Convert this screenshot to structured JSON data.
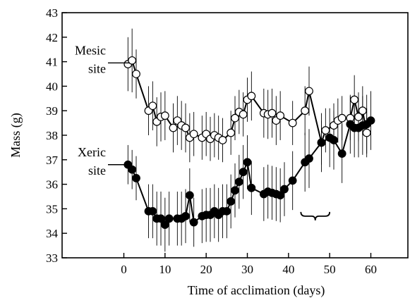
{
  "chart_data": {
    "type": "scatter",
    "xlabel": "Time of acclimation (days)",
    "ylabel": "Mass (g)",
    "xlim": [
      -15,
      69
    ],
    "ylim": [
      33,
      43
    ],
    "xticks": [
      0,
      10,
      20,
      30,
      40,
      50,
      60
    ],
    "yticks": [
      33,
      34,
      35,
      36,
      37,
      38,
      39,
      40,
      41,
      42,
      43
    ],
    "grid": false,
    "legend": "left, inline labels",
    "annotations": [
      {
        "type": "bracket",
        "x_range": [
          43,
          50
        ],
        "y": 34.7
      }
    ],
    "series": [
      {
        "name": "Mesic site",
        "label_lines": [
          "Mesic",
          "site"
        ],
        "marker": "open-circle",
        "color": "#000000",
        "label_y": 40.95,
        "x": [
          1,
          2,
          3,
          6,
          7,
          8,
          9,
          10,
          12,
          13,
          14,
          15,
          16,
          17,
          19,
          20,
          21,
          22,
          23,
          24,
          26,
          27,
          28,
          29,
          30,
          31,
          34,
          35,
          36,
          37,
          38,
          41,
          44,
          45,
          48,
          49,
          51,
          52,
          53,
          55,
          56,
          57,
          58,
          59
        ],
        "y": [
          40.9,
          41.05,
          40.5,
          39.0,
          39.2,
          38.55,
          38.75,
          38.8,
          38.3,
          38.6,
          38.4,
          38.3,
          37.9,
          38.05,
          37.9,
          38.05,
          37.85,
          38.0,
          37.9,
          37.8,
          38.1,
          38.7,
          38.95,
          38.85,
          39.45,
          39.6,
          38.9,
          38.85,
          38.9,
          38.6,
          38.8,
          38.5,
          39.0,
          39.8,
          37.7,
          38.2,
          38.4,
          38.6,
          38.7,
          38.7,
          39.45,
          38.75,
          39.0,
          38.1
        ],
        "err": [
          1.1,
          1.3,
          1.0,
          1.0,
          1.0,
          1.0,
          1.0,
          1.0,
          1.0,
          1.0,
          1.0,
          1.0,
          1.0,
          0.9,
          0.9,
          0.9,
          0.9,
          0.9,
          0.9,
          0.9,
          0.9,
          0.9,
          0.9,
          0.9,
          0.9,
          1.0,
          1.0,
          1.0,
          1.0,
          1.0,
          1.0,
          0.9,
          1.0,
          1.0,
          0.9,
          0.9,
          0.9,
          0.9,
          0.9,
          0.9,
          1.0,
          1.0,
          1.0,
          1.0
        ]
      },
      {
        "name": "Xeric site",
        "label_lines": [
          "Xeric",
          "site"
        ],
        "marker": "filled-circle",
        "color": "#000000",
        "label_y": 36.8,
        "x": [
          1,
          2,
          3,
          6,
          7,
          8,
          9,
          10,
          11,
          13,
          14,
          15,
          16,
          17,
          19,
          20,
          21,
          22,
          23,
          24,
          25,
          26,
          27,
          28,
          29,
          30,
          31,
          34,
          35,
          36,
          37,
          38,
          39,
          41,
          44,
          45,
          48,
          50,
          51,
          53,
          55,
          56,
          57,
          58,
          59,
          60
        ],
        "y": [
          36.8,
          36.6,
          36.25,
          34.9,
          34.9,
          34.6,
          34.6,
          34.35,
          34.6,
          34.6,
          34.6,
          34.7,
          35.55,
          34.45,
          34.7,
          34.75,
          34.75,
          34.9,
          34.75,
          34.9,
          34.9,
          35.3,
          35.75,
          36.1,
          36.5,
          36.9,
          35.85,
          35.6,
          35.7,
          35.65,
          35.6,
          35.55,
          35.8,
          36.15,
          36.9,
          37.05,
          37.7,
          37.9,
          37.8,
          37.25,
          38.45,
          38.3,
          38.3,
          38.4,
          38.45,
          38.6
        ],
        "err": [
          0.8,
          0.8,
          0.9,
          1.1,
          1.1,
          1.1,
          1.1,
          1.1,
          1.1,
          1.1,
          1.1,
          1.1,
          1.1,
          1.0,
          1.1,
          1.1,
          1.1,
          1.1,
          1.1,
          1.1,
          1.1,
          1.1,
          1.1,
          1.1,
          1.1,
          1.1,
          1.1,
          1.1,
          1.1,
          1.1,
          1.1,
          1.1,
          1.1,
          1.2,
          1.2,
          1.2,
          1.2,
          1.2,
          1.2,
          1.2,
          1.2,
          1.2,
          1.2,
          1.2,
          1.2,
          1.2
        ]
      }
    ]
  }
}
